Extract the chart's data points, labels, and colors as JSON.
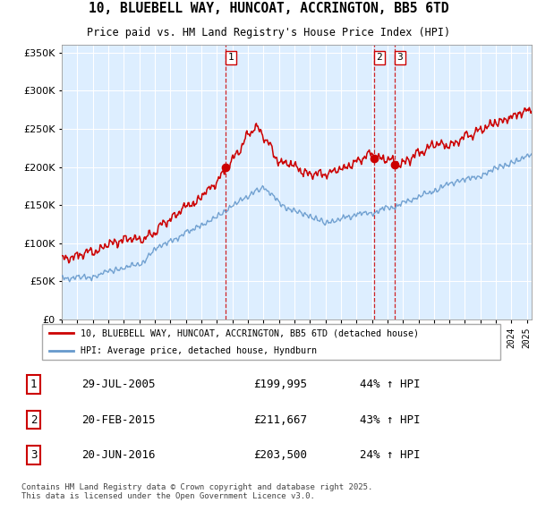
{
  "title": "10, BLUEBELL WAY, HUNCOAT, ACCRINGTON, BB5 6TD",
  "subtitle": "Price paid vs. HM Land Registry's House Price Index (HPI)",
  "legend_line1": "10, BLUEBELL WAY, HUNCOAT, ACCRINGTON, BB5 6TD (detached house)",
  "legend_line2": "HPI: Average price, detached house, Hyndburn",
  "sale1_date": "29-JUL-2005",
  "sale1_price": 199995,
  "sale1_pct": "44% ↑ HPI",
  "sale2_date": "20-FEB-2015",
  "sale2_price": 211667,
  "sale2_pct": "43% ↑ HPI",
  "sale3_date": "20-JUN-2016",
  "sale3_price": 203500,
  "sale3_pct": "24% ↑ HPI",
  "footer": "Contains HM Land Registry data © Crown copyright and database right 2025.\nThis data is licensed under the Open Government Licence v3.0.",
  "red_color": "#cc0000",
  "blue_color": "#6699cc",
  "chart_bg": "#ddeeff",
  "vline_color": "#cc0000",
  "ylim": [
    0,
    360000
  ],
  "yticks": [
    0,
    50000,
    100000,
    150000,
    200000,
    250000,
    300000,
    350000
  ],
  "sale1_x": 2005.57,
  "sale2_x": 2015.13,
  "sale3_x": 2016.47,
  "xmin": 1995.0,
  "xmax": 2025.3
}
